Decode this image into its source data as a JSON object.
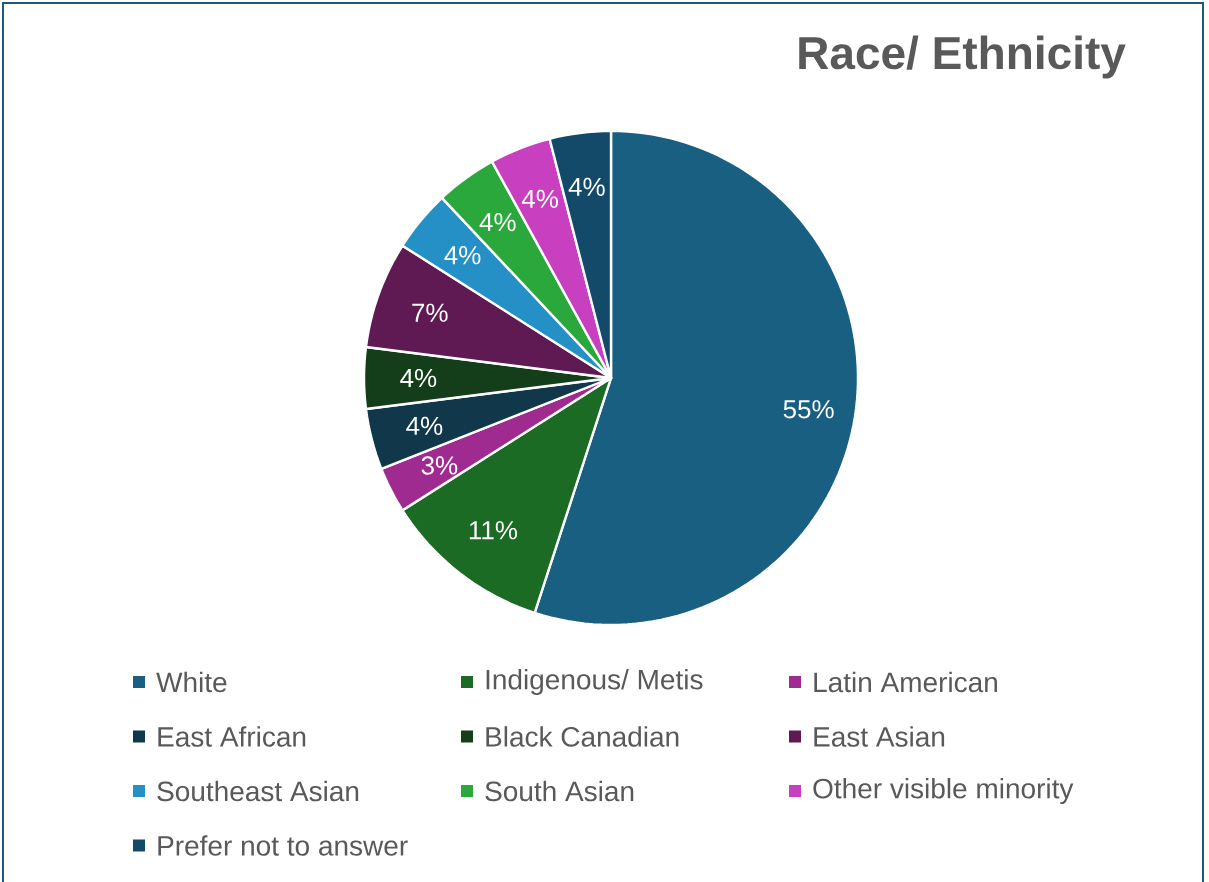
{
  "chart_data": {
    "type": "pie",
    "title": "Race/ Ethnicity",
    "categories": [
      "White",
      "Indigenous/ Metis",
      "Latin American",
      "East African",
      "Black Canadian",
      "East Asian",
      "Southeast Asian",
      "South Asian",
      "Other visible minority",
      "Prefer not to answer"
    ],
    "values": [
      55,
      11,
      3,
      4,
      4,
      7,
      4,
      4,
      4,
      4
    ],
    "value_labels": [
      "55%",
      "11%",
      "3%",
      "4%",
      "4%",
      "7%",
      "4%",
      "4%",
      "4%",
      "4%"
    ],
    "colors": [
      "#185f81",
      "#1b6b24",
      "#a02b90",
      "#10374a",
      "#133e19",
      "#5f1a53",
      "#2590c6",
      "#2ba83b",
      "#c83fbf",
      "#134a6a"
    ],
    "legend": "bottom"
  }
}
